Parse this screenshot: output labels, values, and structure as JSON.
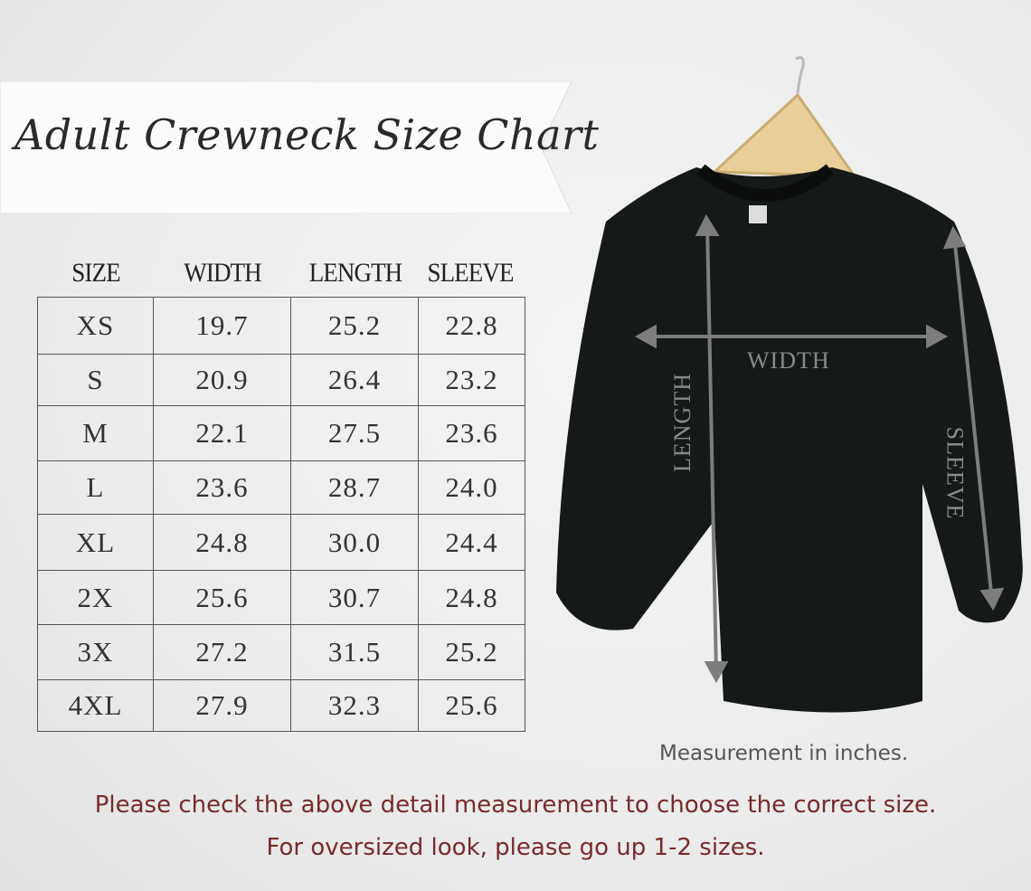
{
  "title": "Adult Crewneck Size Chart",
  "table": {
    "headers": [
      "SIZE",
      "WIDTH",
      "LENGTH",
      "SLEEVE"
    ],
    "rows": [
      [
        "XS",
        "19.7",
        "25.2",
        "22.8"
      ],
      [
        "S",
        "20.9",
        "26.4",
        "23.2"
      ],
      [
        "M",
        "22.1",
        "27.5",
        "23.6"
      ],
      [
        "L",
        "23.6",
        "28.7",
        "24.0"
      ],
      [
        "XL",
        "24.8",
        "30.0",
        "24.4"
      ],
      [
        "2X",
        "25.6",
        "30.7",
        "24.8"
      ],
      [
        "3X",
        "27.2",
        "31.5",
        "25.2"
      ],
      [
        "4XL",
        "27.9",
        "32.3",
        "25.6"
      ]
    ]
  },
  "diagram": {
    "width_label": "WIDTH",
    "length_label": "LENGTH",
    "sleeve_label": "SLEEVE"
  },
  "unit_note": "Measurement in inches.",
  "footer": {
    "line1": "Please check the above detail measurement to choose the correct size.",
    "line2": "For oversized look,  please go up 1-2 sizes."
  },
  "colors": {
    "footer_text": "#7a2a2a",
    "shirt": "#141816",
    "arrows": "#7d7d7d"
  }
}
